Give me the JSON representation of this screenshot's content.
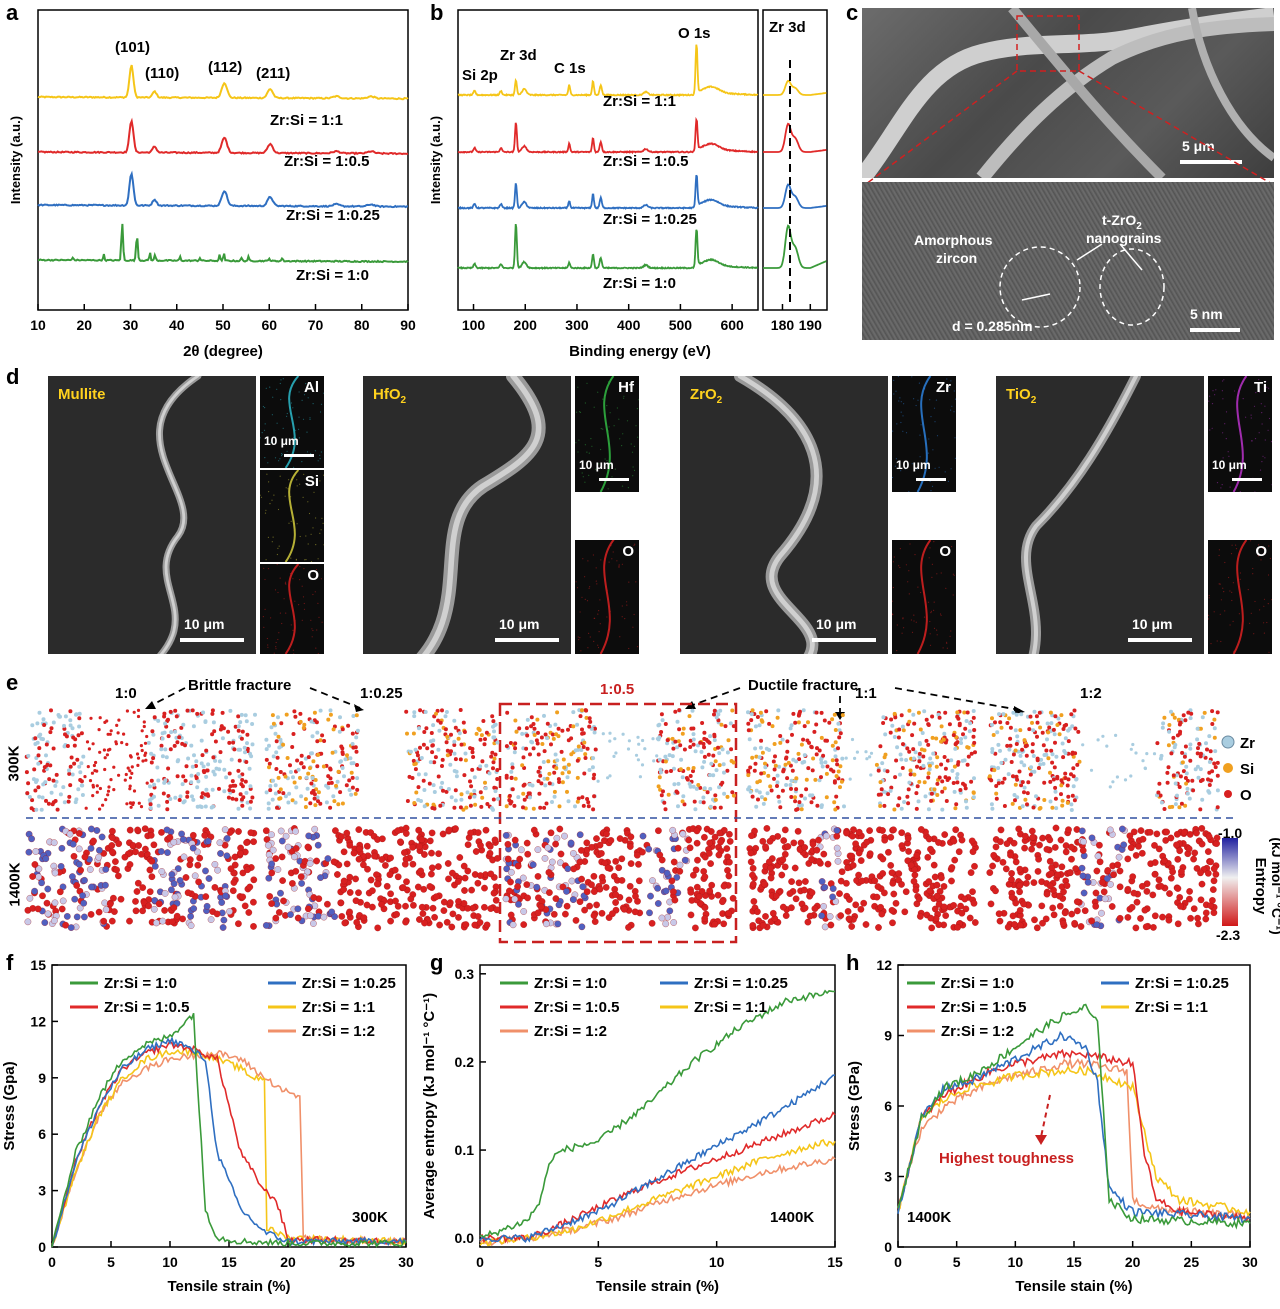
{
  "panel_labels": {
    "a": "a",
    "b": "b",
    "c": "c",
    "d": "d",
    "e": "e",
    "f": "f",
    "g": "g",
    "h": "h"
  },
  "panel_a": {
    "xlabel": "2θ (degree)",
    "ylabel": "Intensity (a.u.)",
    "xticks": [
      "10",
      "20",
      "30",
      "40",
      "50",
      "60",
      "70",
      "80",
      "90"
    ],
    "peaks": [
      "(101)",
      "(110)",
      "(112)",
      "(211)"
    ],
    "series": [
      {
        "name": "Zr:Si = 1:1",
        "color": "#f5c518"
      },
      {
        "name": "Zr:Si = 1:0.5",
        "color": "#e02a2a"
      },
      {
        "name": "Zr:Si = 1:0.25",
        "color": "#2f6fc1"
      },
      {
        "name": "Zr:Si = 1:0",
        "color": "#3a9a3a"
      }
    ]
  },
  "panel_b": {
    "xlabel": "Binding energy (eV)",
    "ylabel": "Intensity (a.u.)",
    "xticks": [
      "100",
      "200",
      "300",
      "400",
      "500",
      "600"
    ],
    "xticks_inset": [
      "180",
      "190"
    ],
    "peaks": [
      "Si 2p",
      "Zr 3d",
      "C 1s",
      "O 1s"
    ],
    "inset_title": "Zr 3d",
    "series": [
      {
        "name": "Zr:Si = 1:1",
        "color": "#f5c518"
      },
      {
        "name": "Zr:Si = 1:0.5",
        "color": "#e02a2a"
      },
      {
        "name": "Zr:Si = 1:0.25",
        "color": "#2f6fc1"
      },
      {
        "name": "Zr:Si = 1:0",
        "color": "#3a9a3a"
      }
    ]
  },
  "panel_c": {
    "scale_top": "5 μm",
    "scale_bottom": "5 nm",
    "label_amorphous_1": "Amorphous",
    "label_amorphous_2": "zircon",
    "label_grains_1": "t-ZrO",
    "label_grains_sub": "2",
    "label_grains_2": "nanograins",
    "label_d": "d = 0.285nm"
  },
  "panel_d": {
    "materials": [
      {
        "name": "Mullite",
        "scale": "10 μm",
        "maps": [
          {
            "el": "Al",
            "scale": "10 μm",
            "color": "#2ab0c0"
          },
          {
            "el": "Si",
            "scale": "",
            "color": "#c9c23a"
          },
          {
            "el": "O",
            "scale": "",
            "color": "#d02020"
          }
        ]
      },
      {
        "name": "HfO",
        "sub": "2",
        "scale": "10 μm",
        "maps": [
          {
            "el": "Hf",
            "scale": "10 μm",
            "color": "#30b040"
          },
          {
            "el": "O",
            "scale": "",
            "color": "#d02020"
          }
        ]
      },
      {
        "name": "ZrO",
        "sub": "2",
        "scale": "10 μm",
        "maps": [
          {
            "el": "Zr",
            "scale": "10 μm",
            "color": "#2a7ad0"
          },
          {
            "el": "O",
            "scale": "",
            "color": "#d02020"
          }
        ]
      },
      {
        "name": "TiO",
        "sub": "2",
        "scale": "10 μm",
        "maps": [
          {
            "el": "Ti",
            "scale": "10 μm",
            "color": "#b030c0"
          },
          {
            "el": "O",
            "scale": "",
            "color": "#d02020"
          }
        ]
      }
    ]
  },
  "panel_e": {
    "brittle": "Brittle fracture",
    "ductile": "Ductile fracture",
    "ratios": [
      "1:0",
      "1:0.25",
      "1:0.5",
      "1:1",
      "1:2"
    ],
    "temp_top": "300K",
    "temp_bottom": "1400K",
    "legend": [
      {
        "el": "Zr",
        "color": "#a9cde0"
      },
      {
        "el": "Si",
        "color": "#f0a020"
      },
      {
        "el": "O",
        "color": "#d82020"
      }
    ],
    "colorbar_max": "-1.0",
    "colorbar_min": "-2.3",
    "colorbar_label": "Entropy",
    "colorbar_unit": "(kJ mol⁻¹ °C⁻¹)"
  },
  "chart_data": [
    {
      "type": "line",
      "panel": "f",
      "xlabel": "Tensile strain (%)",
      "ylabel": "Stress (Gpa)",
      "xlim": [
        0,
        30
      ],
      "ylim": [
        0,
        15
      ],
      "xticks": [
        "0",
        "5",
        "10",
        "15",
        "20",
        "25",
        "30"
      ],
      "yticks": [
        "0",
        "3",
        "6",
        "9",
        "12",
        "15"
      ],
      "annotation": "300K",
      "series": [
        {
          "name": "Zr:Si = 1:0",
          "color": "#3a9a3a",
          "x": [
            0,
            2,
            4,
            6,
            8,
            10,
            12,
            12.3,
            13,
            14,
            16,
            20,
            30
          ],
          "y": [
            0,
            5,
            8,
            10,
            10.8,
            11.2,
            12.4,
            9,
            2,
            0.5,
            0.3,
            0.2,
            0.2
          ]
        },
        {
          "name": "Zr:Si = 1:0.25",
          "color": "#2f6fc1",
          "x": [
            0,
            2,
            4,
            6,
            8,
            10,
            11,
            13,
            14,
            15,
            16,
            18,
            20,
            30
          ],
          "y": [
            0,
            4.5,
            7.5,
            9.5,
            10.5,
            11,
            10.8,
            10,
            5,
            3.5,
            2,
            0.8,
            0.3,
            0.3
          ]
        },
        {
          "name": "Zr:Si = 1:0.5",
          "color": "#e02a2a",
          "x": [
            0,
            2,
            4,
            6,
            8,
            10,
            12,
            14,
            15,
            16,
            17,
            18,
            19,
            20,
            30
          ],
          "y": [
            0,
            4.5,
            7.5,
            9.5,
            10.3,
            10.8,
            10.5,
            10,
            7.5,
            5,
            4,
            3,
            2.5,
            0.4,
            0.3
          ]
        },
        {
          "name": "Zr:Si = 1:1",
          "color": "#f5c518",
          "x": [
            0,
            2,
            4,
            6,
            8,
            10,
            12,
            14,
            16,
            17,
            18,
            18.2,
            20,
            30
          ],
          "y": [
            0,
            4,
            7,
            9,
            10,
            10.4,
            10.4,
            10,
            9.5,
            9,
            9,
            1,
            0.5,
            0.3
          ]
        },
        {
          "name": "Zr:Si = 1:2",
          "color": "#f0906a",
          "x": [
            0,
            2,
            4,
            6,
            8,
            10,
            12,
            14,
            16,
            18,
            20,
            21,
            21.3,
            22,
            30
          ],
          "y": [
            0,
            4,
            7,
            8.8,
            9.5,
            10,
            10.2,
            10.3,
            10,
            9,
            8.2,
            8,
            0.5,
            0.4,
            0.3
          ]
        }
      ]
    },
    {
      "type": "line",
      "panel": "g",
      "xlabel": "Tensile strain (%)",
      "ylabel": "Average entropy (kJ mol⁻¹ °C⁻¹)",
      "xlim": [
        0,
        15
      ],
      "ylim": [
        -0.01,
        0.31
      ],
      "xticks": [
        "0",
        "5",
        "10",
        "15"
      ],
      "yticks": [
        "0.0",
        "0.1",
        "0.2",
        "0.3"
      ],
      "annotation": "1400K",
      "series": [
        {
          "name": "Zr:Si = 1:0",
          "color": "#3a9a3a",
          "x": [
            0,
            1,
            2,
            2.5,
            3,
            3.5,
            5,
            7,
            9,
            11,
            13,
            15
          ],
          "y": [
            0,
            0.01,
            0.02,
            0.04,
            0.09,
            0.1,
            0.11,
            0.15,
            0.2,
            0.24,
            0.27,
            0.28
          ]
        },
        {
          "name": "Zr:Si = 1:0.25",
          "color": "#2f6fc1",
          "x": [
            0,
            2,
            3,
            5,
            7,
            9,
            11,
            13,
            15
          ],
          "y": [
            0,
            0,
            0.01,
            0.03,
            0.06,
            0.09,
            0.12,
            0.15,
            0.185
          ]
        },
        {
          "name": "Zr:Si = 1:0.5",
          "color": "#e02a2a",
          "x": [
            0,
            2,
            3,
            5,
            7,
            9,
            11,
            13,
            15
          ],
          "y": [
            0,
            0,
            0.01,
            0.035,
            0.06,
            0.08,
            0.1,
            0.12,
            0.14
          ]
        },
        {
          "name": "Zr:Si = 1:1",
          "color": "#f5c518",
          "x": [
            0,
            2,
            4,
            6,
            8,
            10,
            12,
            14,
            15
          ],
          "y": [
            -0.005,
            0,
            0.01,
            0.03,
            0.05,
            0.07,
            0.09,
            0.105,
            0.11
          ]
        },
        {
          "name": "Zr:Si = 1:2",
          "color": "#f0906a",
          "x": [
            0,
            2,
            4,
            6,
            8,
            10,
            12,
            14,
            15
          ],
          "y": [
            -0.005,
            0,
            0.01,
            0.025,
            0.045,
            0.06,
            0.075,
            0.085,
            0.09
          ]
        }
      ]
    },
    {
      "type": "line",
      "panel": "h",
      "xlabel": "Tensile stain (%)",
      "ylabel": "Stress (GPa)",
      "xlim": [
        0,
        30
      ],
      "ylim": [
        0,
        12
      ],
      "xticks": [
        "0",
        "5",
        "10",
        "15",
        "20",
        "25",
        "30"
      ],
      "yticks": [
        "0",
        "3",
        "6",
        "9",
        "12"
      ],
      "annotation": "1400K",
      "callout": "Highest toughness",
      "series": [
        {
          "name": "Zr:Si = 1:0",
          "color": "#3a9a3a",
          "x": [
            0,
            1,
            2,
            4,
            6,
            8,
            10,
            12,
            14,
            16,
            17,
            17.5,
            18,
            20,
            30
          ],
          "y": [
            1.5,
            3.5,
            5.5,
            6.8,
            7.2,
            7.8,
            8.5,
            9.2,
            9.8,
            10.2,
            9.5,
            6,
            2,
            1.2,
            1
          ]
        },
        {
          "name": "Zr:Si = 1:0.25",
          "color": "#2f6fc1",
          "x": [
            0,
            1,
            2,
            4,
            6,
            8,
            10,
            12,
            14,
            16,
            17,
            18,
            20,
            30
          ],
          "y": [
            1.5,
            3.5,
            5.5,
            6.8,
            7,
            7.5,
            8,
            8.5,
            9,
            8.5,
            7,
            2.5,
            1.5,
            1.2
          ]
        },
        {
          "name": "Zr:Si = 1:0.5",
          "color": "#e02a2a",
          "x": [
            0,
            1,
            2,
            4,
            6,
            8,
            10,
            12,
            14,
            16,
            18,
            20,
            21,
            22,
            24,
            30
          ],
          "y": [
            1.5,
            3.5,
            5.5,
            6.5,
            7,
            7.5,
            7.8,
            8,
            8.2,
            8.2,
            8,
            7.8,
            4,
            2,
            1.5,
            1.2
          ]
        },
        {
          "name": "Zr:Si = 1:1",
          "color": "#f5c518",
          "x": [
            0,
            1,
            2,
            4,
            6,
            8,
            10,
            12,
            14,
            16,
            18,
            20,
            22,
            24,
            30
          ],
          "y": [
            1.5,
            3.5,
            5.5,
            6.3,
            6.8,
            7,
            7.3,
            7.4,
            7.5,
            7.5,
            7.2,
            6.8,
            3,
            2,
            1.5
          ]
        },
        {
          "name": "Zr:Si = 1:2",
          "color": "#f0906a",
          "x": [
            0,
            1,
            2,
            4,
            6,
            8,
            10,
            12,
            14,
            16,
            18,
            19.5,
            20,
            22,
            30
          ],
          "y": [
            1.5,
            3.5,
            5,
            6,
            6.5,
            7,
            7.3,
            7.5,
            7.8,
            7.8,
            7.6,
            7.5,
            2,
            1.6,
            1.3
          ]
        }
      ]
    }
  ]
}
